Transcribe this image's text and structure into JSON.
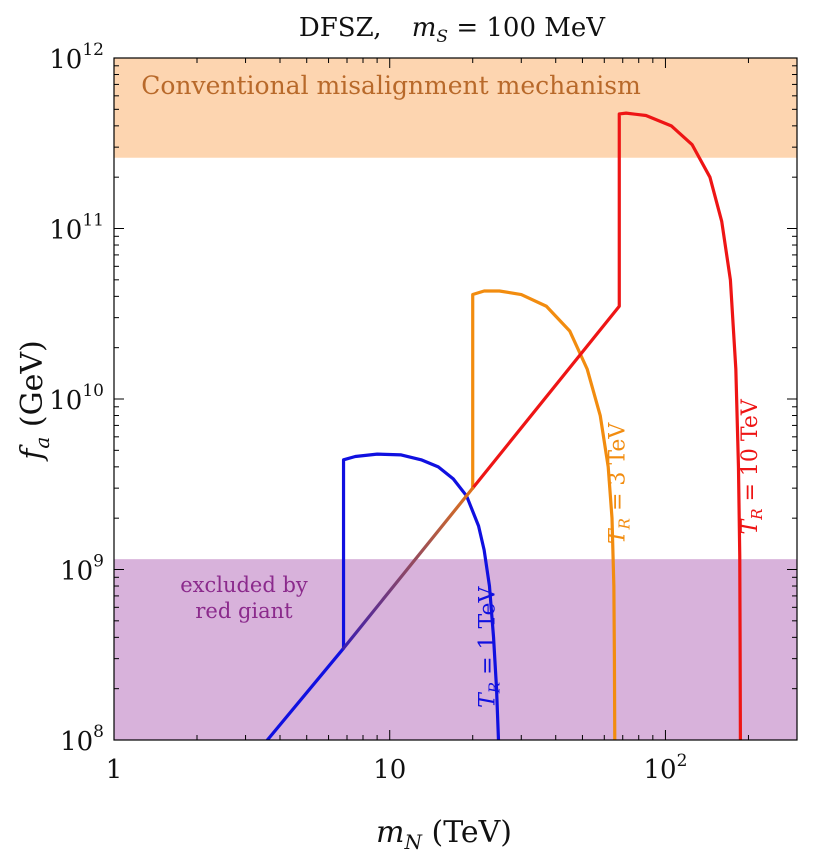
{
  "chart_data": {
    "type": "line",
    "title": "DFSZ,  m_S = 100 MeV",
    "title_prefix": "DFSZ,",
    "title_m": "m",
    "title_sub": "S",
    "title_value": " = 100 MeV",
    "xlabel_main": "m",
    "xlabel_sub": "N",
    "xlabel_unit": " (TeV)",
    "ylabel_main": "f",
    "ylabel_sub": "a",
    "ylabel_unit": " (GeV)",
    "x_scale": "log",
    "y_scale": "log",
    "xlim": [
      1,
      300
    ],
    "ylim": [
      100000000.0,
      1000000000000.0
    ],
    "x_ticks": [
      {
        "value": 1,
        "label": "1"
      },
      {
        "value": 10,
        "label": "10"
      },
      {
        "value": 100,
        "label": "10",
        "sup": "2"
      }
    ],
    "y_ticks": [
      {
        "value": 100000000.0,
        "label": "10",
        "sup": "8"
      },
      {
        "value": 1000000000.0,
        "label": "10",
        "sup": "9"
      },
      {
        "value": 10000000000.0,
        "label": "10",
        "sup": "10"
      },
      {
        "value": 100000000000.0,
        "label": "10",
        "sup": "11"
      },
      {
        "value": 1000000000000.0,
        "label": "10",
        "sup": "12"
      }
    ],
    "regions": [
      {
        "name": "misalignment",
        "label": "Conventional misalignment mechanism",
        "y_from": 260000000000.0,
        "y_to": 1000000000000.0,
        "fill": "#fdd5b0",
        "text_color": "#b8692a"
      },
      {
        "name": "red-giant",
        "label_line1": "excluded by",
        "label_line2": "red giant",
        "y_from": 100000000.0,
        "y_to": 1150000000.0,
        "fill": "#d8b2db",
        "text_color": "#8b2a8c"
      }
    ],
    "series": [
      {
        "name": "TR=1TeV",
        "label_main": "T",
        "label_sub": "R",
        "label_value": " = 1 TeV",
        "color": "#1010e0",
        "points": [
          [
            3.6,
            100000000.0
          ],
          [
            6.8,
            345000000.0
          ],
          [
            6.8,
            4400000000.0
          ],
          [
            7.5,
            4600000000.0
          ],
          [
            9.0,
            4750000000.0
          ],
          [
            11.0,
            4700000000.0
          ],
          [
            13.0,
            4400000000.0
          ],
          [
            15.0,
            4000000000.0
          ],
          [
            17.0,
            3400000000.0
          ],
          [
            19.0,
            2700000000.0
          ],
          [
            21.0,
            1800000000.0
          ],
          [
            22.0,
            1300000000.0
          ],
          [
            23.0,
            800000000.0
          ],
          [
            23.8,
            400000000.0
          ],
          [
            24.4,
            200000000.0
          ],
          [
            24.8,
            100000000.0
          ]
        ],
        "label_at": [
          24,
          350000000.0
        ]
      },
      {
        "name": "TR=3TeV",
        "label_main": "T",
        "label_sub": "R",
        "label_value": " = 3 TeV",
        "color": "#f28c0f",
        "points": [
          [
            20.0,
            3000000000.0
          ],
          [
            20.0,
            41000000000.0
          ],
          [
            22.0,
            43000000000.0
          ],
          [
            25.0,
            43000000000.0
          ],
          [
            30.0,
            41000000000.0
          ],
          [
            37.0,
            35000000000.0
          ],
          [
            45.0,
            25000000000.0
          ],
          [
            52.0,
            15000000000.0
          ],
          [
            58.0,
            8000000000.0
          ],
          [
            62.0,
            4000000000.0
          ],
          [
            64.0,
            2000000000.0
          ],
          [
            65.0,
            800000000.0
          ],
          [
            65.3,
            300000000.0
          ],
          [
            65.5,
            100000000.0
          ]
        ],
        "label_at": [
          71,
          3200000000.0
        ]
      },
      {
        "name": "TR=10TeV",
        "label_main": "T",
        "label_sub": "R",
        "label_value": " = 10 TeV",
        "color": "#ee1515",
        "points": [
          [
            20.0,
            3000000000.0
          ],
          [
            68.0,
            35000000000.0
          ],
          [
            68.0,
            470000000000.0
          ],
          [
            72.0,
            475000000000.0
          ],
          [
            85.0,
            460000000000.0
          ],
          [
            105.0,
            400000000000.0
          ],
          [
            125.0,
            310000000000.0
          ],
          [
            145.0,
            200000000000.0
          ],
          [
            160.0,
            110000000000.0
          ],
          [
            172.0,
            50000000000.0
          ],
          [
            180.0,
            15000000000.0
          ],
          [
            184.0,
            4000000000.0
          ],
          [
            186.0,
            1200000000.0
          ],
          [
            186.5,
            400000000.0
          ],
          [
            187.0,
            100000000.0
          ]
        ],
        "label_at": [
          215,
          4000000000.0
        ]
      },
      {
        "name": "shared-diagonal",
        "color": "#c0581a",
        "points": [
          [
            6.8,
            345000000.0
          ],
          [
            20.0,
            3000000000.0
          ]
        ],
        "gradient": [
          "#3b1db0",
          "#e0721a"
        ]
      }
    ]
  }
}
